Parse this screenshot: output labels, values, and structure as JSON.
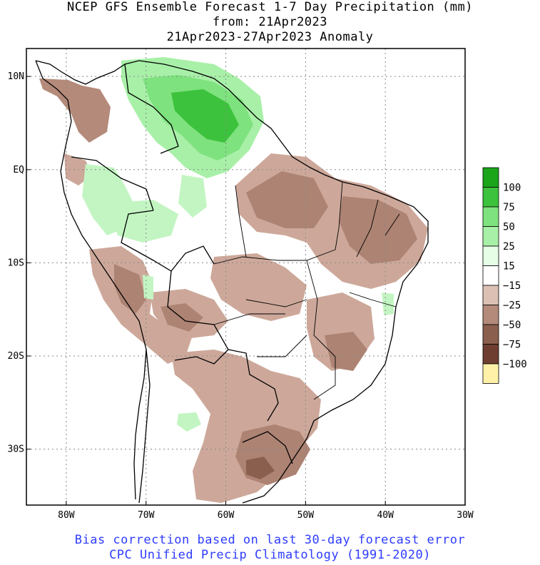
{
  "title": {
    "line1": "NCEP GFS Ensemble Forecast 1-7 Day Precipitation (mm)",
    "line2": "from: 21Apr2023",
    "line3": "21Apr2023-27Apr2023 Anomaly"
  },
  "map": {
    "lon_range": [
      -85,
      -30
    ],
    "lat_range": [
      -36,
      13
    ],
    "grid": true,
    "lat_ticks": [
      {
        "lat": 10,
        "label": "10N"
      },
      {
        "lat": 0,
        "label": "EQ"
      },
      {
        "lat": -10,
        "label": "10S"
      },
      {
        "lat": -20,
        "label": "20S"
      },
      {
        "lat": -30,
        "label": "30S"
      }
    ],
    "lon_ticks": [
      {
        "lon": -80,
        "label": "80W"
      },
      {
        "lon": -70,
        "label": "70W"
      },
      {
        "lon": -60,
        "label": "60W"
      },
      {
        "lon": -50,
        "label": "50W"
      },
      {
        "lon": -40,
        "label": "40W"
      },
      {
        "lon": -30,
        "label": "30W"
      }
    ],
    "regions": [
      {
        "name": "northern-wet-core",
        "color": "#3cc23c"
      },
      {
        "name": "northern-wet",
        "color": "#7ee27e"
      },
      {
        "name": "amazon-light-wet",
        "color": "#c3f5c3"
      },
      {
        "name": "northeast-brazil-dry",
        "color": "#ad8373"
      },
      {
        "name": "southern-brazil-dry",
        "color": "#cda89a"
      },
      {
        "name": "rio-grande-do-sul-very-dry",
        "color": "#8a5f4e"
      },
      {
        "name": "peru-dry",
        "color": "#ad8373"
      }
    ]
  },
  "legend": {
    "labels": [
      "100",
      "75",
      "50",
      "25",
      "15",
      "−15",
      "−25",
      "−50",
      "−75",
      "−100"
    ],
    "colors": [
      "#1aa51a",
      "#3cc23c",
      "#7ee27e",
      "#a8f0a8",
      "#e6fde6",
      "#ffffff",
      "#dcc0b4",
      "#b48a7a",
      "#8a5f4e",
      "#6e3e30",
      "#fff2a8"
    ]
  },
  "footer": {
    "line1": "Bias correction based on last 30-day forecast error",
    "line2": "CPC Unified Precip Climatology (1991-2020)"
  }
}
